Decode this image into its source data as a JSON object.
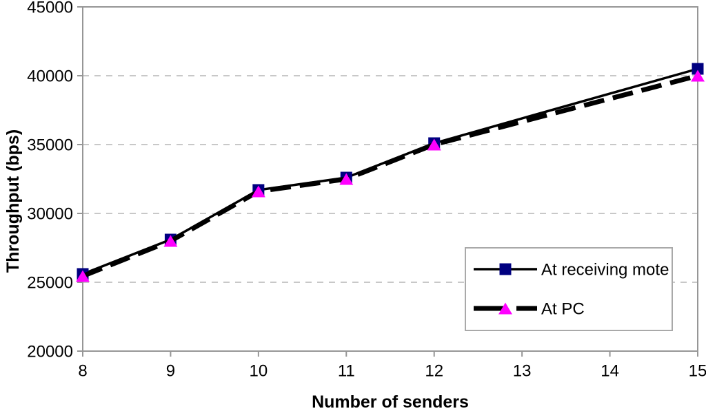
{
  "chart_data": {
    "type": "line",
    "title": "",
    "xlabel": "Number of senders",
    "ylabel": "Throughput (bps)",
    "x": [
      8,
      9,
      10,
      11,
      12,
      15
    ],
    "series": [
      {
        "name": "At receiving mote",
        "values": [
          25600,
          28100,
          31700,
          32600,
          35100,
          40500
        ],
        "line": {
          "style": "solid",
          "color": "#000000",
          "width": 3.5,
          "dash": null
        },
        "marker": {
          "shape": "square",
          "color": "#000080",
          "size": 17
        }
      },
      {
        "name": "At PC",
        "values": [
          25450,
          28000,
          31600,
          32500,
          35000,
          40000
        ],
        "line": {
          "style": "dashed",
          "color": "#000000",
          "width": 7,
          "dash": [
            30,
            13
          ]
        },
        "marker": {
          "shape": "triangle-up",
          "color": "#FF00FF",
          "size": 20
        }
      }
    ],
    "xlim": [
      8,
      15
    ],
    "ylim": [
      20000,
      45000
    ],
    "x_ticks": [
      8,
      9,
      10,
      11,
      12,
      13,
      14,
      15
    ],
    "y_ticks": [
      20000,
      25000,
      30000,
      35000,
      40000,
      45000
    ],
    "grid": {
      "horizontal": true,
      "style": "dashed",
      "color": "#C8C8C8",
      "dash": [
        9,
        8
      ]
    },
    "axis_color": "#969696",
    "text_color": "#000000",
    "background": "#FFFFFF",
    "legend": {
      "position": "inside-bottom-right",
      "border_color": "#A9A9A9",
      "fill": "#FFFFFF"
    }
  }
}
